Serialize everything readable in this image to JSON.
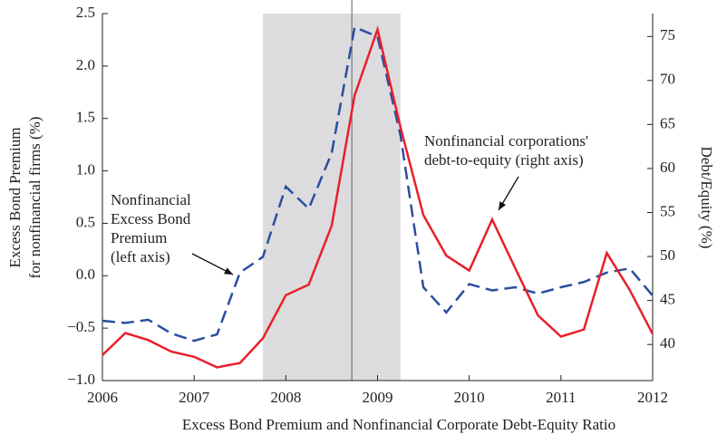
{
  "chart_data": {
    "type": "line",
    "title": "Excess Bond Premium and Nonfinancial  Corporate Debt-Equity Ratio",
    "ylabel": [
      "Excess Bond Premium",
      "for nonfinancial firms (%)"
    ],
    "y2label": "Debt/Equity (%)",
    "x": [
      2006,
      2006.25,
      2006.5,
      2006.75,
      2007,
      2007.25,
      2007.5,
      2007.75,
      2008,
      2008.25,
      2008.5,
      2008.75,
      2009,
      2009.25,
      2009.5,
      2009.75,
      2010,
      2010.25,
      2010.5,
      2010.75,
      2011,
      2011.25,
      2011.5,
      2011.75,
      2012
    ],
    "series": [
      {
        "name": "Nonfinancial Excess Bond Premium",
        "color": "#2b4ea0",
        "dash": true,
        "axis": "y",
        "values": [
          -0.43,
          -0.45,
          -0.42,
          -0.55,
          -0.62,
          -0.56,
          0.03,
          0.18,
          0.85,
          0.64,
          1.17,
          2.37,
          2.28,
          1.34,
          -0.11,
          -0.35,
          -0.08,
          -0.14,
          -0.11,
          -0.17,
          -0.11,
          -0.06,
          0.03,
          0.07,
          -0.19
        ]
      },
      {
        "name": "Nonfinancial corporations' debt-to-equity",
        "color": "#e8202a",
        "dash": false,
        "axis": "y2",
        "values": [
          38.8,
          41.3,
          40.5,
          39.2,
          38.6,
          37.4,
          37.9,
          40.7,
          45.6,
          46.8,
          53.5,
          68.3,
          75.8,
          64.7,
          54.7,
          50.1,
          48.4,
          54.2,
          48.7,
          43.3,
          40.9,
          41.7,
          50.4,
          46.2,
          41.2
        ]
      }
    ],
    "xlim": [
      2006,
      2012
    ],
    "xticks": [
      2006,
      2007,
      2008,
      2009,
      2010,
      2011,
      2012
    ],
    "ylim": [
      -1.0,
      2.5
    ],
    "yticks": [
      {
        "value": -1.0,
        "label": "−1.0"
      },
      {
        "value": -0.5,
        "label": "−0.5"
      },
      {
        "value": 0,
        "label": "0.0"
      },
      0.5,
      {
        "value": 1.0,
        "label": "1.0"
      },
      1.5,
      {
        "value": 2.0,
        "label": "2.0"
      },
      2.5
    ],
    "y2lim": [
      35.9,
      77.6
    ],
    "y2ticks": [
      40,
      45,
      50,
      55,
      60,
      65,
      70,
      75
    ],
    "shaded_x": [
      2007.75,
      2009.25
    ],
    "vline_x": 2008.72,
    "annotations": [
      {
        "lines": [
          "Nonfinancial",
          "Excess Bond",
          "Premium",
          "(left axis)"
        ]
      },
      {
        "lines": [
          "Nonfinancial corporations'",
          "debt-to-equity (right axis)"
        ]
      }
    ]
  }
}
